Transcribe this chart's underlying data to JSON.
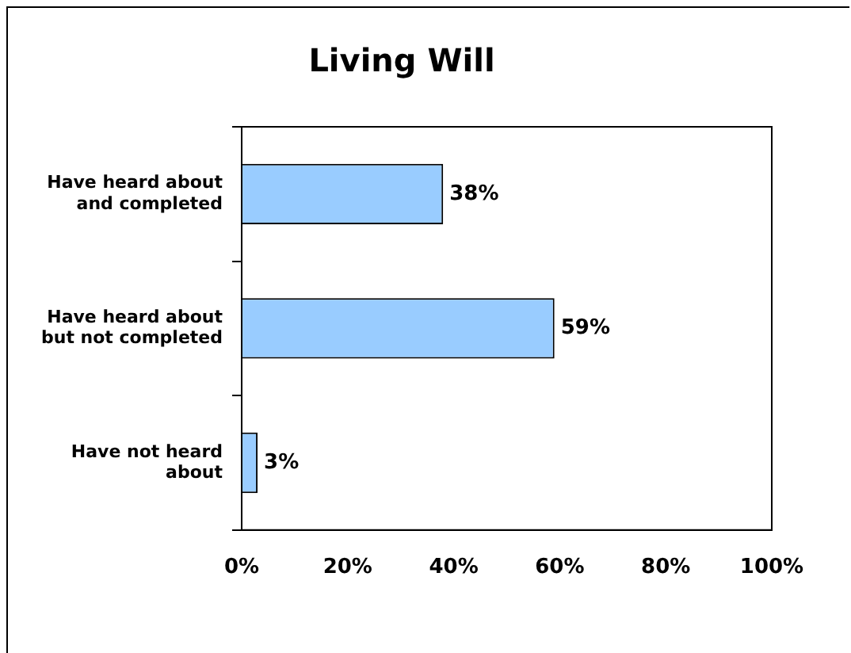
{
  "chart_data": {
    "type": "bar",
    "orientation": "horizontal",
    "title": "Living Will",
    "categories": [
      "Have heard about and completed",
      "Have heard about but not completed",
      "Have not heard about"
    ],
    "values": [
      38,
      59,
      3
    ],
    "color": "#99ccff",
    "value_labels": [
      "38%",
      "59%",
      "3%"
    ],
    "xlim": [
      0,
      100
    ],
    "xticks": [
      {
        "value": 0,
        "label": "0%"
      },
      {
        "value": 20,
        "label": "20%"
      },
      {
        "value": 40,
        "label": "40%"
      },
      {
        "value": 60,
        "label": "60%"
      },
      {
        "value": 80,
        "label": "80%"
      },
      {
        "value": 100,
        "label": "100%"
      }
    ],
    "grid": false,
    "legend": false
  }
}
